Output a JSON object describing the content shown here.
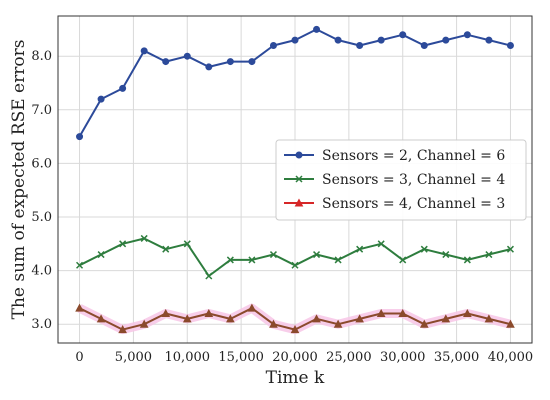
{
  "chart_data": {
    "type": "line",
    "xlabel": "Time k",
    "ylabel": "The sum of expected RSE errors",
    "xlim": [
      -2000,
      42000
    ],
    "ylim": [
      2.65,
      8.75
    ],
    "xticks": [
      0,
      5000,
      10000,
      15000,
      20000,
      25000,
      30000,
      35000,
      40000
    ],
    "xtick_labels": [
      "0",
      "5,000",
      "10,000",
      "15,000",
      "20,000",
      "25,000",
      "30,000",
      "35,000",
      "40,000"
    ],
    "yticks": [
      3.0,
      4.0,
      5.0,
      6.0,
      7.0,
      8.0
    ],
    "ytick_labels": [
      "3.0",
      "4.0",
      "5.0",
      "6.0",
      "7.0",
      "8.0"
    ],
    "grid": true,
    "legend_position": "center-right",
    "x": [
      0,
      2000,
      4000,
      6000,
      8000,
      10000,
      12000,
      14000,
      16000,
      18000,
      20000,
      22000,
      24000,
      26000,
      28000,
      30000,
      32000,
      34000,
      36000,
      38000,
      40000
    ],
    "series": [
      {
        "name": "Sensors = 2, Channel = 6",
        "color": "#2c4a9a",
        "marker": "circle",
        "values": [
          6.5,
          7.2,
          7.4,
          8.1,
          7.9,
          8.0,
          7.8,
          7.9,
          7.9,
          8.2,
          8.3,
          8.5,
          8.3,
          8.2,
          8.3,
          8.4,
          8.2,
          8.3,
          8.4,
          8.3,
          8.2
        ]
      },
      {
        "name": "Sensors = 3, Channel = 4",
        "color": "#2e7d3e",
        "marker": "x",
        "values": [
          4.1,
          4.3,
          4.5,
          4.6,
          4.4,
          4.5,
          3.9,
          4.2,
          4.2,
          4.3,
          4.1,
          4.3,
          4.2,
          4.4,
          4.5,
          4.2,
          4.4,
          4.3,
          4.2,
          4.3,
          4.4
        ]
      },
      {
        "name": "Sensors = 4, Channel = 3",
        "color": "#8b4a2c",
        "legend_color": "#d62728",
        "band_color": "#f7c6e6",
        "marker": "triangle",
        "values": [
          3.3,
          3.1,
          2.9,
          3.0,
          3.2,
          3.1,
          3.2,
          3.1,
          3.3,
          3.0,
          2.9,
          3.1,
          3.0,
          3.1,
          3.2,
          3.2,
          3.0,
          3.1,
          3.2,
          3.1,
          3.0
        ]
      }
    ]
  }
}
